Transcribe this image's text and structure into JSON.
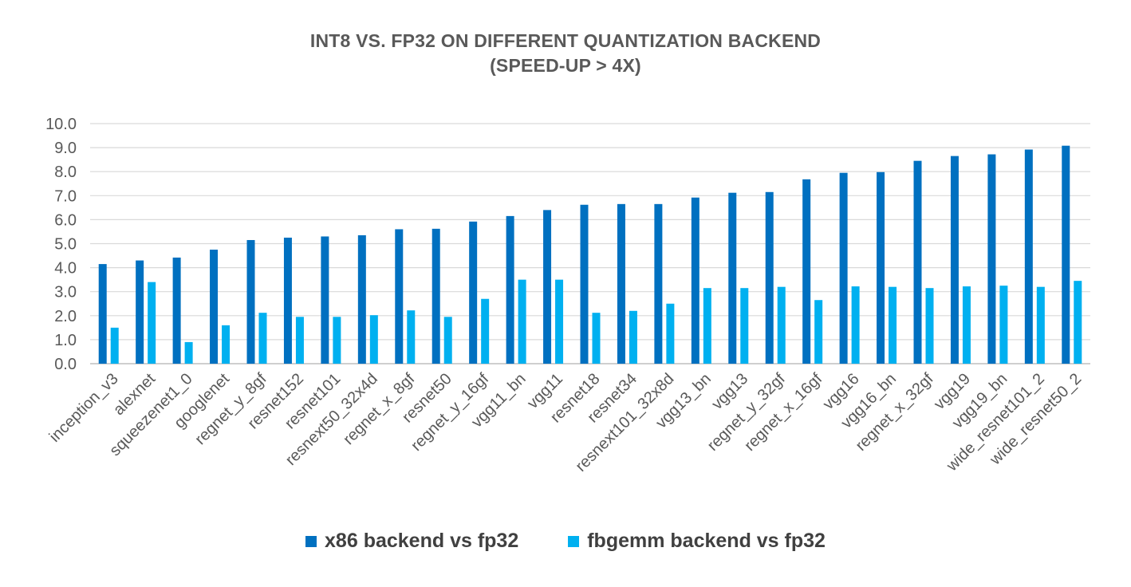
{
  "chart_data": {
    "type": "bar",
    "title": "INT8 VS. FP32 ON DIFFERENT QUANTIZATION BACKEND",
    "subtitle": "(SPEED-UP > 4X)",
    "categories": [
      "inception_v3",
      "alexnet",
      "squeezenet1_0",
      "googlenet",
      "regnet_y_8gf",
      "resnet152",
      "resnet101",
      "resnext50_32x4d",
      "regnet_x_8gf",
      "resnet50",
      "regnet_y_16gf",
      "vgg11_bn",
      "vgg11",
      "resnet18",
      "resnet34",
      "resnext101_32x8d",
      "vgg13_bn",
      "vgg13",
      "regnet_y_32gf",
      "regnet_x_16gf",
      "vgg16",
      "vgg16_bn",
      "regnet_x_32gf",
      "vgg19",
      "vgg19_bn",
      "wide_resnet101_2",
      "wide_resnet50_2"
    ],
    "series": [
      {
        "name": "x86 backend vs fp32",
        "color": "#0070c0",
        "values": [
          4.15,
          4.3,
          4.42,
          4.75,
          5.15,
          5.25,
          5.3,
          5.35,
          5.6,
          5.62,
          5.92,
          6.15,
          6.4,
          6.62,
          6.65,
          6.65,
          6.92,
          7.12,
          7.15,
          7.68,
          7.95,
          7.98,
          8.45,
          8.65,
          8.72,
          8.92,
          9.08
        ]
      },
      {
        "name": "fbgemm backend vs fp32",
        "color": "#00b0f0",
        "values": [
          1.5,
          3.4,
          0.9,
          1.6,
          2.12,
          1.95,
          1.95,
          2.02,
          2.22,
          1.95,
          2.7,
          3.5,
          3.5,
          2.12,
          2.2,
          2.5,
          3.15,
          3.15,
          3.2,
          2.65,
          3.22,
          3.2,
          3.15,
          3.22,
          3.25,
          3.2,
          3.45
        ]
      }
    ],
    "ylim": [
      0,
      10
    ],
    "yticks": [
      "0.0",
      "1.0",
      "2.0",
      "3.0",
      "4.0",
      "5.0",
      "6.0",
      "7.0",
      "8.0",
      "9.0",
      "10.0"
    ],
    "grid": true,
    "legend_position": "bottom"
  }
}
